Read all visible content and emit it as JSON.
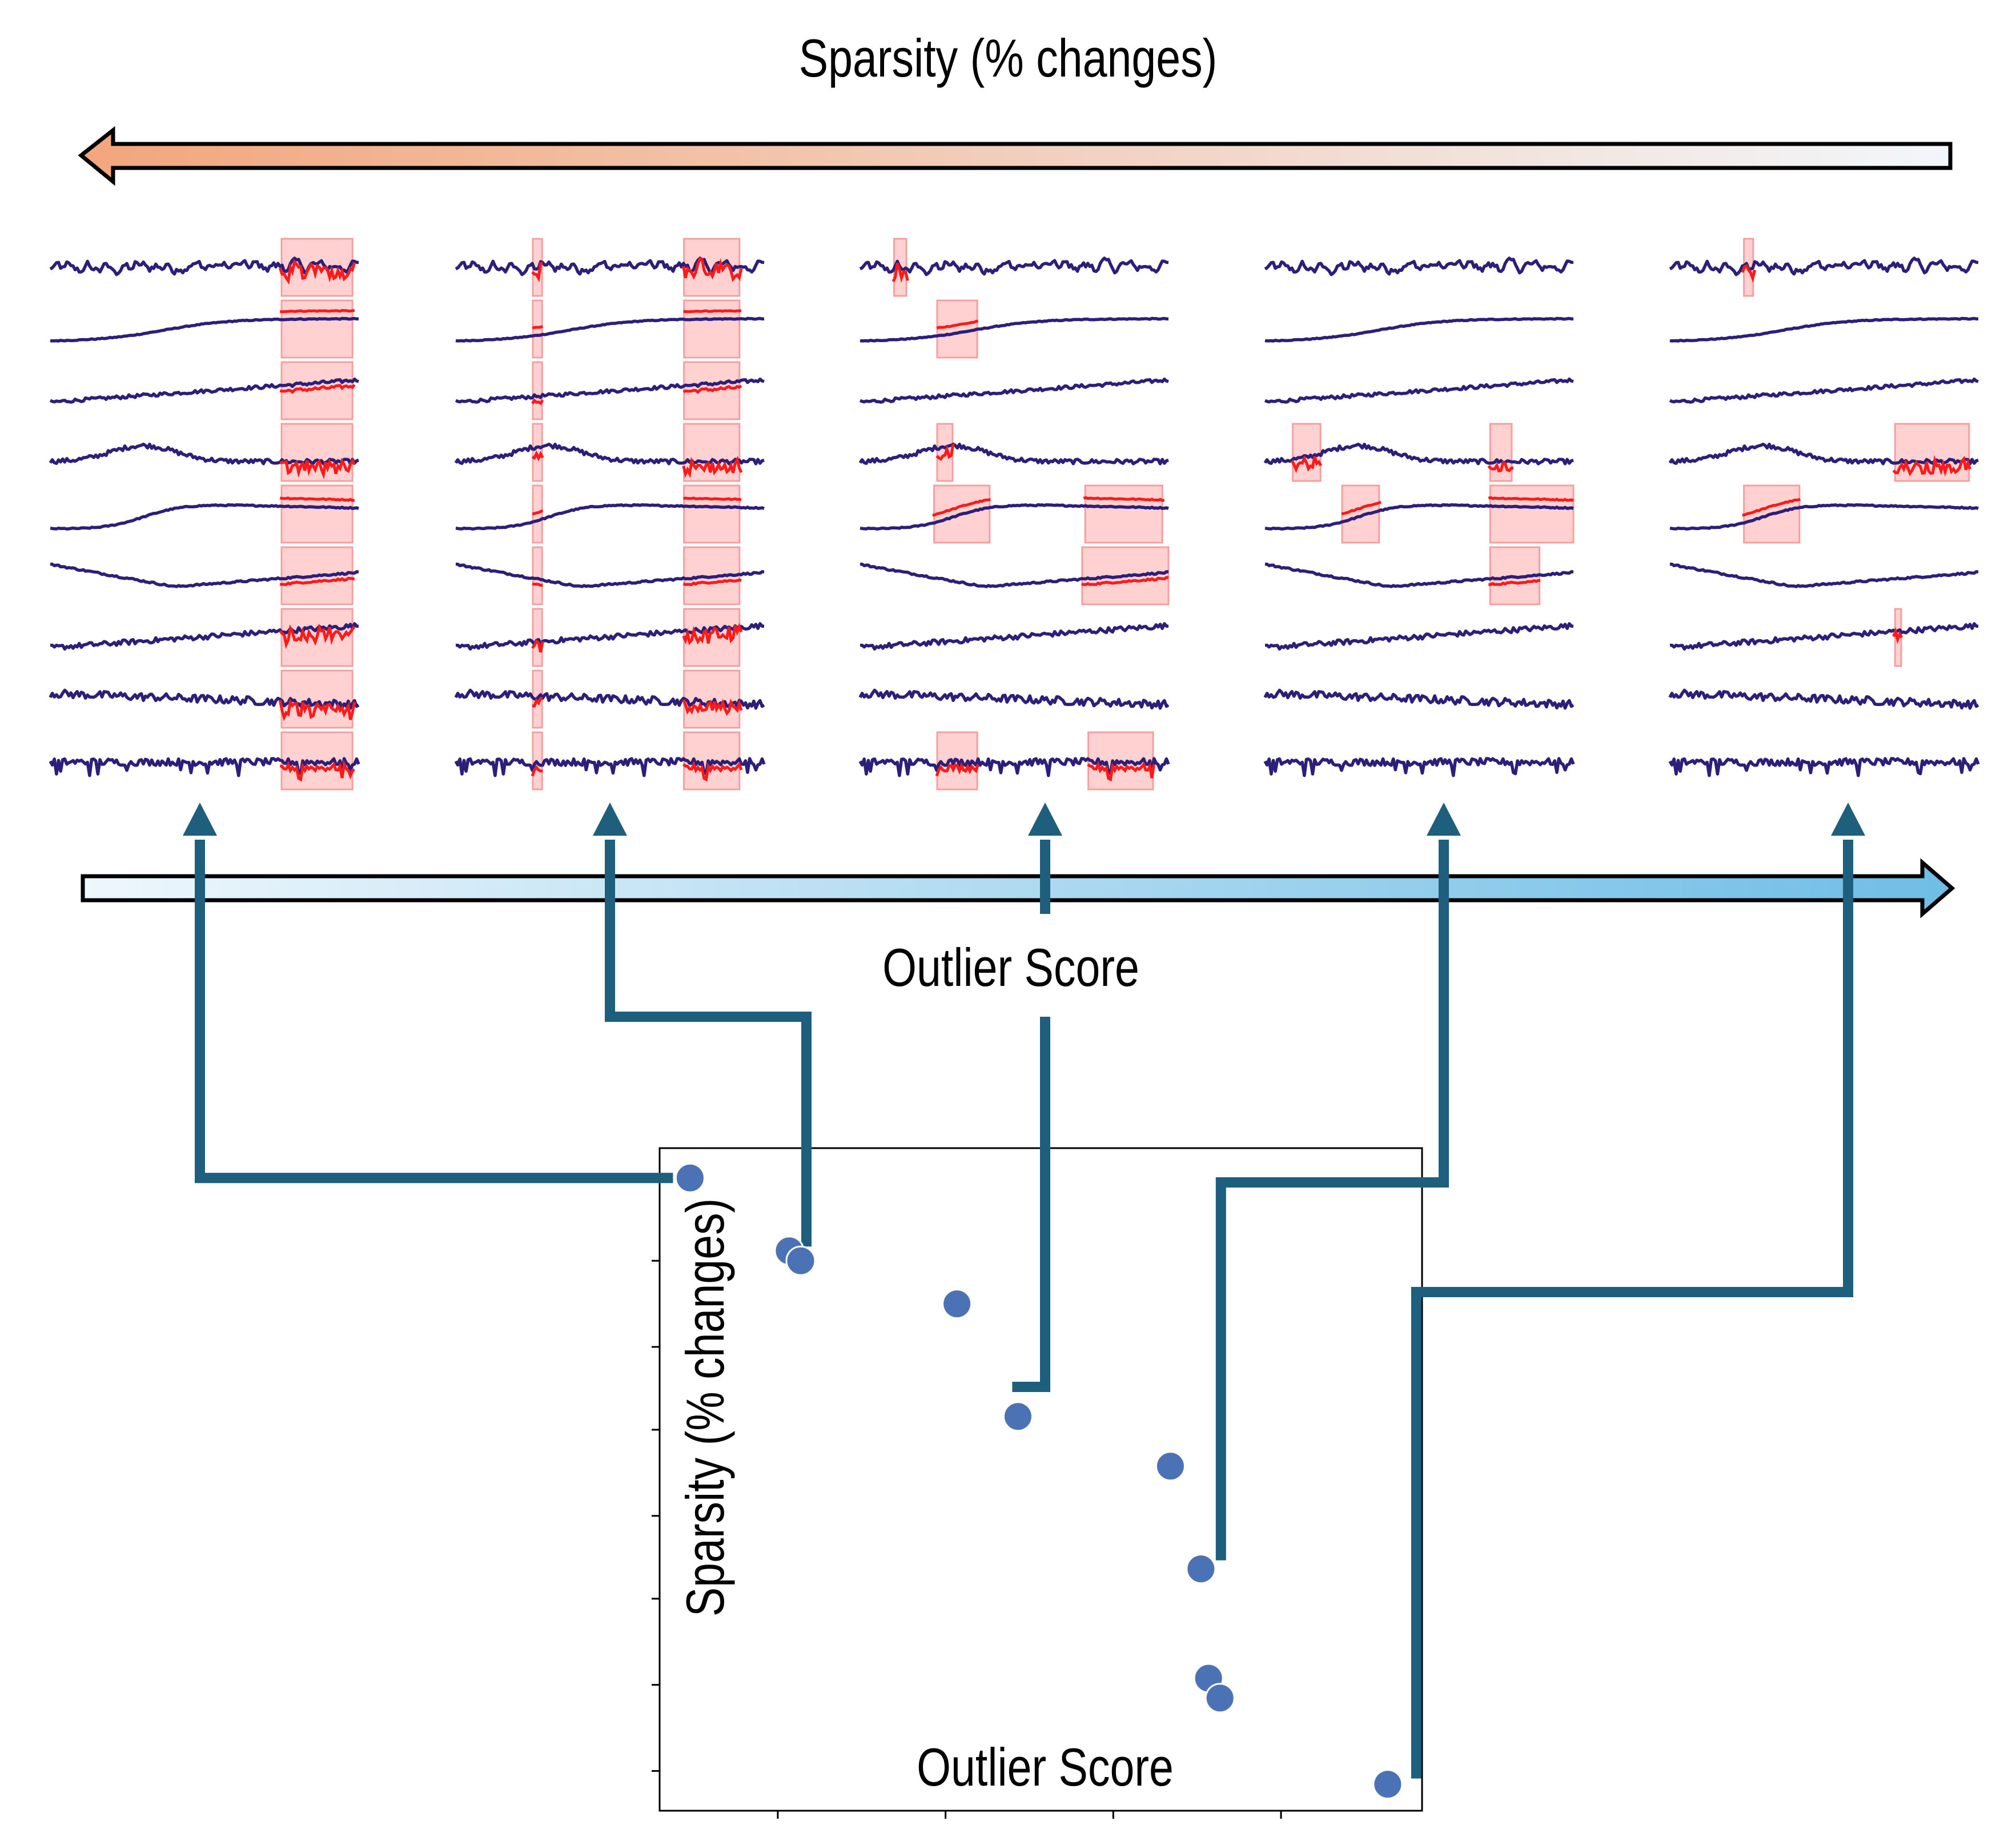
{
  "figure": {
    "top_arrow_label": "Sparsity (% changes)",
    "middle_arrow_label": "Outlier Score",
    "colors": {
      "sparsity_arrow_start": "#f2a67c",
      "sparsity_arrow_end": "#f2f7fb",
      "score_arrow_start": "#eef7fc",
      "score_arrow_end": "#6fbde6",
      "connector": "#1e5f7d",
      "series_line": "#2b1f7a",
      "changed_segment": "#ff1a1a",
      "changed_region_fill": "#ffcccc",
      "point": "#4b72b5"
    },
    "panels": [
      {
        "name": "panel-1",
        "series_count": 9
      },
      {
        "name": "panel-2",
        "series_count": 9
      },
      {
        "name": "panel-3",
        "series_count": 9
      },
      {
        "name": "panel-4",
        "series_count": 9
      },
      {
        "name": "panel-5",
        "series_count": 9
      }
    ]
  },
  "chart_data": {
    "type": "scatter",
    "xlabel": "Outlier Score",
    "ylabel": "Sparsity (% changes)",
    "tick_labels_shown": false,
    "xlim": [
      0,
      1
    ],
    "ylim": [
      0,
      1
    ],
    "points": [
      {
        "x": 0.04,
        "y": 0.955
      },
      {
        "x": 0.17,
        "y": 0.845
      },
      {
        "x": 0.185,
        "y": 0.83
      },
      {
        "x": 0.39,
        "y": 0.765
      },
      {
        "x": 0.47,
        "y": 0.595
      },
      {
        "x": 0.67,
        "y": 0.52
      },
      {
        "x": 0.71,
        "y": 0.365
      },
      {
        "x": 0.72,
        "y": 0.2
      },
      {
        "x": 0.735,
        "y": 0.17
      },
      {
        "x": 0.955,
        "y": 0.04
      }
    ]
  }
}
